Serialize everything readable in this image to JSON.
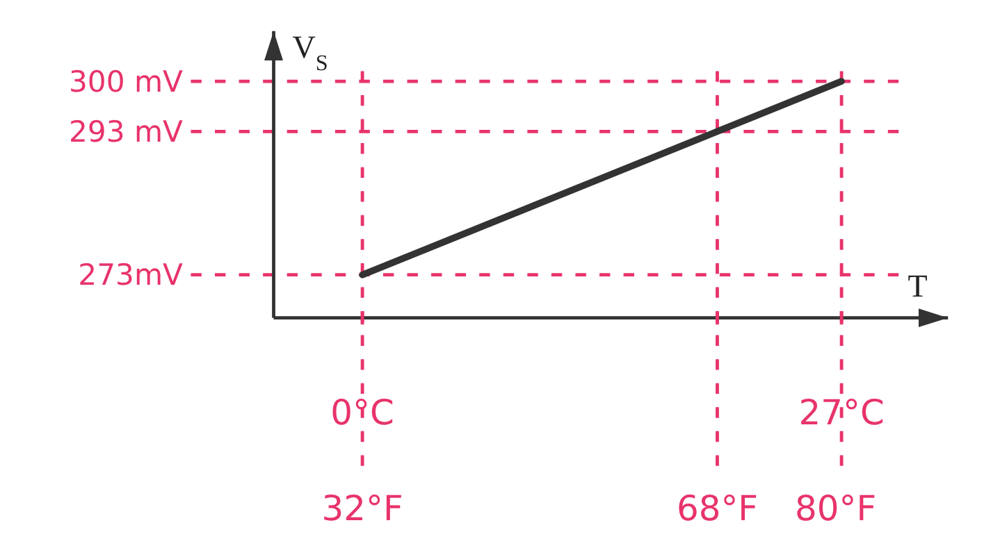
{
  "chart_data": {
    "type": "line",
    "xlabel": "T",
    "ylabel": "V$_{S}$",
    "x": [
      0,
      20,
      27
    ],
    "series": [
      {
        "color": "#333333",
        "values": [
          273,
          293,
          300
        ]
      }
    ],
    "xlim": [
      -5,
      33
    ],
    "ylim": [
      267,
      307
    ],
    "xticks": [
      {
        "value": 0,
        "label": "0°C"
      },
      {
        "value": 20,
        "label": null
      },
      {
        "value": 27,
        "label": "27°C"
      }
    ],
    "yticks": [
      {
        "value": 273,
        "label": "273mV"
      },
      {
        "value": 293,
        "label": "293 mV"
      },
      {
        "value": 300,
        "label": "300 mV"
      }
    ],
    "x2lim": [
      23,
      91.4
    ],
    "x2ticks": [
      {
        "value": 32,
        "label": "32°F"
      },
      {
        "value": 68,
        "label": "68°F"
      },
      {
        "value": 80,
        "label": "80°F"
      }
    ],
    "ref_lines": [
      {
        "axis": "x",
        "value": 0,
        "color": "#e8336b",
        "line_style": "dashed"
      },
      {
        "axis": "x",
        "value": 20,
        "color": "#e8336b",
        "line_style": "dashed"
      },
      {
        "axis": "x",
        "value": 27,
        "color": "#e8336b",
        "line_style": "dashed"
      },
      {
        "axis": "y",
        "value": 273,
        "color": "#e8336b",
        "line_style": "dashed"
      },
      {
        "axis": "y",
        "value": 293,
        "color": "#e8336b",
        "line_style": "dashed"
      },
      {
        "axis": "y",
        "value": 300,
        "color": "#e8336b",
        "line_style": "dashed"
      }
    ],
    "grid": false,
    "marker": "none",
    "line_style": "solid"
  }
}
